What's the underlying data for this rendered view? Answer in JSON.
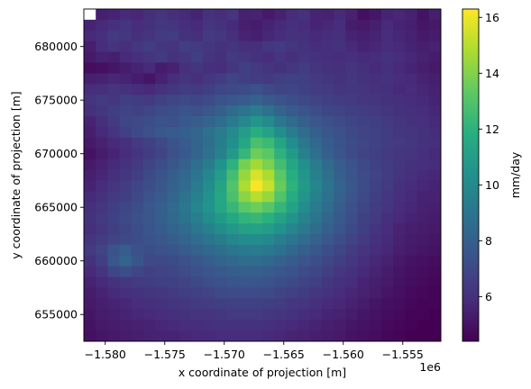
{
  "chart_data": {
    "type": "heatmap",
    "title": "",
    "xlabel": "x coordinate of projection [m]",
    "ylabel": "y coordinate of projection [m]",
    "x_offset_label": "1e6",
    "xlim": [
      -1.5818,
      -1.5518
    ],
    "ylim": [
      652500,
      683500
    ],
    "x_ticks": [
      -1.58,
      -1.575,
      -1.57,
      -1.565,
      -1.56,
      -1.555
    ],
    "x_tick_labels": [
      "−1.580",
      "−1.575",
      "−1.570",
      "−1.565",
      "−1.560",
      "−1.555"
    ],
    "y_ticks": [
      655000,
      660000,
      665000,
      670000,
      675000,
      680000
    ],
    "y_tick_labels": [
      "655000",
      "660000",
      "665000",
      "670000",
      "675000",
      "680000"
    ],
    "colormap": "viridis",
    "colorbar": {
      "label": "mm/day",
      "range": [
        4.4,
        16.3
      ],
      "ticks": [
        6,
        8,
        10,
        12,
        14,
        16
      ],
      "tick_labels": [
        "6",
        "8",
        "10",
        "12",
        "14",
        "16"
      ]
    },
    "grid": false,
    "grid_shape": [
      31,
      30
    ],
    "row_order": "top-to-bottom",
    "missing_value_cells": [
      [
        0,
        0
      ]
    ],
    "peak": {
      "value": 16.2,
      "x": -1.5673,
      "y": 667000
    },
    "values": [
      [
        null,
        5.4,
        5.6,
        5.8,
        5.7,
        6.0,
        6.2,
        6.0,
        5.8,
        5.6,
        6.1,
        5.9,
        6.2,
        5.5,
        5.6,
        5.2,
        5.5,
        5.9,
        6.1,
        5.6,
        5.5,
        5.8,
        5.5,
        4.9,
        5.1,
        5.6,
        5.7,
        5.5,
        5.0,
        5.4
      ],
      [
        5.6,
        5.8,
        6.0,
        6.2,
        5.9,
        6.1,
        6.3,
        6.2,
        6.0,
        5.8,
        6.2,
        6.1,
        5.8,
        5.4,
        5.3,
        5.6,
        5.8,
        6.0,
        5.9,
        5.6,
        5.7,
        5.9,
        5.3,
        5.2,
        5.4,
        5.8,
        5.6,
        5.4,
        5.1,
        5.2
      ],
      [
        5.8,
        6.0,
        6.4,
        6.3,
        6.0,
        6.2,
        6.4,
        6.5,
        6.1,
        6.0,
        6.4,
        6.3,
        6.0,
        5.6,
        5.4,
        5.7,
        5.9,
        6.1,
        6.0,
        5.8,
        5.9,
        6.0,
        5.6,
        5.4,
        5.6,
        5.9,
        5.7,
        5.5,
        5.2,
        5.3
      ],
      [
        5.4,
        5.9,
        6.2,
        6.0,
        6.3,
        6.5,
        6.3,
        6.2,
        6.6,
        6.4,
        6.3,
        6.1,
        6.2,
        6.0,
        6.0,
        6.3,
        6.4,
        6.2,
        6.1,
        5.9,
        6.0,
        6.1,
        5.8,
        5.6,
        5.7,
        5.9,
        5.8,
        5.6,
        5.4,
        5.5
      ],
      [
        5.2,
        5.5,
        5.4,
        5.8,
        6.0,
        6.2,
        6.4,
        6.1,
        6.3,
        6.6,
        6.2,
        6.0,
        6.4,
        6.3,
        6.1,
        5.9,
        6.2,
        6.0,
        6.2,
        6.1,
        6.0,
        5.9,
        6.0,
        5.8,
        5.9,
        6.1,
        5.9,
        5.7,
        5.5,
        5.3
      ],
      [
        4.8,
        4.9,
        5.1,
        5.3,
        5.6,
        5.8,
        5.3,
        5.5,
        6.0,
        6.2,
        6.0,
        5.9,
        6.3,
        6.6,
        6.4,
        6.2,
        6.1,
        6.3,
        6.5,
        6.2,
        6.1,
        6.0,
        6.2,
        6.0,
        5.8,
        6.0,
        5.8,
        5.6,
        5.4,
        5.2
      ],
      [
        5.4,
        5.5,
        5.7,
        5.6,
        5.3,
        5.1,
        5.5,
        5.9,
        6.2,
        6.0,
        6.3,
        6.5,
        6.8,
        6.6,
        6.5,
        6.4,
        6.6,
        6.7,
        6.6,
        6.4,
        6.2,
        6.1,
        6.3,
        6.1,
        6.0,
        6.1,
        5.9,
        5.8,
        5.6,
        5.4
      ],
      [
        5.9,
        6.0,
        6.2,
        6.1,
        5.9,
        5.8,
        6.1,
        6.3,
        6.5,
        6.4,
        6.6,
        6.9,
        7.0,
        7.1,
        7.3,
        7.0,
        6.8,
        6.9,
        6.7,
        6.5,
        6.4,
        6.2,
        6.3,
        6.2,
        6.1,
        6.0,
        5.8,
        5.9,
        5.7,
        5.5
      ],
      [
        6.2,
        6.4,
        6.3,
        6.6,
        6.5,
        6.4,
        6.7,
        6.9,
        7.0,
        6.9,
        7.1,
        7.4,
        7.6,
        7.8,
        8.1,
        7.7,
        7.4,
        7.2,
        7.0,
        6.8,
        6.6,
        6.5,
        6.4,
        6.3,
        6.2,
        6.1,
        6.0,
        5.9,
        5.8,
        5.6
      ],
      [
        6.0,
        6.3,
        6.6,
        6.8,
        6.7,
        6.9,
        7.1,
        7.2,
        7.4,
        7.3,
        7.6,
        8.0,
        8.5,
        8.9,
        9.3,
        8.8,
        8.2,
        7.8,
        7.5,
        7.2,
        6.9,
        6.8,
        6.6,
        6.5,
        6.4,
        6.2,
        6.1,
        6.0,
        5.9,
        5.7
      ],
      [
        5.6,
        6.0,
        6.4,
        6.9,
        7.0,
        7.2,
        7.4,
        7.3,
        7.7,
        7.9,
        8.2,
        8.6,
        9.2,
        9.9,
        10.6,
        10.0,
        9.1,
        8.5,
        8.0,
        7.6,
        7.3,
        7.1,
        6.9,
        6.7,
        6.6,
        6.4,
        6.2,
        6.1,
        6.0,
        5.8
      ],
      [
        5.4,
        5.8,
        6.2,
        6.7,
        7.0,
        7.3,
        7.6,
        7.8,
        8.0,
        8.3,
        8.8,
        9.3,
        10.0,
        10.9,
        11.8,
        11.2,
        10.2,
        9.3,
        8.6,
        8.0,
        7.6,
        7.3,
        7.0,
        6.8,
        6.7,
        6.5,
        6.3,
        6.2,
        6.1,
        5.9
      ],
      [
        5.2,
        5.5,
        5.8,
        6.0,
        6.4,
        6.7,
        7.0,
        7.4,
        7.8,
        8.2,
        8.7,
        9.4,
        10.3,
        11.5,
        12.8,
        12.4,
        11.3,
        10.1,
        9.1,
        8.4,
        7.8,
        7.4,
        7.1,
        6.9,
        6.7,
        6.5,
        6.4,
        6.3,
        6.1,
        6.0
      ],
      [
        5.0,
        5.3,
        5.6,
        5.9,
        6.2,
        6.5,
        6.8,
        7.3,
        7.7,
        8.2,
        8.8,
        9.6,
        10.8,
        12.2,
        13.6,
        13.2,
        12.0,
        10.8,
        9.6,
        8.7,
        8.0,
        7.5,
        7.1,
        6.8,
        6.6,
        6.4,
        6.3,
        6.2,
        6.0,
        5.8
      ],
      [
        5.2,
        5.5,
        5.8,
        6.1,
        6.4,
        6.8,
        7.2,
        7.6,
        8.1,
        8.7,
        9.4,
        10.4,
        12.0,
        13.8,
        14.6,
        13.9,
        12.6,
        11.4,
        10.3,
        9.3,
        8.5,
        7.9,
        7.4,
        7.0,
        6.7,
        6.5,
        6.3,
        6.1,
        6.0,
        5.9
      ],
      [
        5.4,
        5.7,
        6.0,
        6.3,
        6.6,
        7.0,
        7.4,
        7.9,
        8.4,
        9.0,
        9.8,
        10.9,
        12.6,
        14.4,
        15.6,
        14.8,
        13.2,
        11.8,
        10.6,
        9.6,
        8.7,
        8.0,
        7.5,
        7.1,
        6.8,
        6.5,
        6.2,
        6.0,
        5.8,
        5.7
      ],
      [
        5.6,
        5.9,
        6.2,
        6.5,
        6.9,
        7.2,
        7.6,
        8.1,
        8.6,
        9.3,
        10.1,
        11.3,
        13.0,
        14.8,
        16.2,
        15.3,
        13.5,
        12.0,
        10.8,
        9.8,
        8.9,
        8.2,
        7.6,
        7.1,
        6.7,
        6.4,
        6.1,
        5.9,
        5.7,
        5.6
      ],
      [
        5.8,
        6.1,
        6.4,
        6.6,
        7.0,
        7.4,
        7.8,
        8.3,
        8.9,
        9.6,
        10.4,
        11.5,
        12.8,
        14.2,
        15.0,
        14.4,
        13.0,
        11.7,
        10.6,
        9.6,
        8.8,
        8.1,
        7.5,
        7.0,
        6.6,
        6.3,
        6.0,
        5.8,
        5.6,
        5.5
      ],
      [
        6.0,
        6.3,
        6.6,
        6.9,
        7.2,
        7.6,
        8.0,
        8.5,
        9.1,
        9.8,
        10.5,
        11.4,
        12.3,
        13.2,
        13.6,
        13.1,
        12.2,
        11.2,
        10.2,
        9.3,
        8.6,
        7.9,
        7.3,
        6.9,
        6.5,
        6.2,
        5.9,
        5.7,
        5.5,
        5.4
      ],
      [
        6.1,
        6.4,
        6.7,
        7.0,
        7.3,
        7.6,
        8.0,
        8.4,
        8.9,
        9.5,
        10.1,
        10.8,
        11.5,
        12.1,
        12.3,
        11.9,
        11.2,
        10.5,
        9.7,
        9.0,
        8.3,
        7.7,
        7.2,
        6.7,
        6.4,
        6.0,
        5.8,
        5.6,
        5.4,
        5.3
      ],
      [
        6.0,
        6.3,
        6.6,
        6.9,
        7.2,
        7.5,
        7.8,
        8.2,
        8.6,
        9.1,
        9.6,
        10.2,
        10.7,
        11.1,
        11.2,
        10.9,
        10.4,
        9.8,
        9.2,
        8.6,
        8.0,
        7.5,
        7.0,
        6.6,
        6.2,
        5.9,
        5.6,
        5.4,
        5.3,
        5.2
      ],
      [
        6.2,
        6.5,
        6.8,
        7.0,
        7.2,
        7.4,
        7.6,
        7.9,
        8.2,
        8.6,
        9.0,
        9.4,
        9.8,
        10.1,
        10.2,
        9.9,
        9.5,
        9.0,
        8.6,
        8.1,
        7.6,
        7.2,
        6.8,
        6.4,
        6.1,
        5.8,
        5.5,
        5.3,
        5.2,
        5.1
      ],
      [
        6.4,
        6.8,
        7.4,
        7.9,
        7.3,
        7.2,
        7.3,
        7.5,
        7.8,
        8.1,
        8.4,
        8.7,
        9.0,
        9.2,
        9.3,
        9.1,
        8.8,
        8.4,
        8.0,
        7.6,
        7.2,
        6.9,
        6.5,
        6.2,
        5.9,
        5.7,
        5.4,
        5.2,
        5.1,
        5.0
      ],
      [
        6.1,
        6.6,
        7.6,
        8.2,
        7.5,
        7.0,
        7.0,
        7.1,
        7.3,
        7.6,
        7.9,
        8.2,
        8.4,
        8.6,
        8.6,
        8.4,
        8.1,
        7.8,
        7.5,
        7.2,
        6.9,
        6.6,
        6.3,
        6.0,
        5.7,
        5.5,
        5.2,
        5.0,
        4.9,
        4.8
      ],
      [
        5.8,
        6.2,
        6.9,
        7.2,
        6.9,
        6.7,
        6.8,
        6.9,
        7.1,
        7.3,
        7.5,
        7.7,
        7.9,
        8.0,
        8.0,
        7.8,
        7.6,
        7.4,
        7.1,
        6.9,
        6.6,
        6.3,
        6.1,
        5.8,
        5.6,
        5.3,
        5.1,
        4.9,
        4.8,
        4.7
      ],
      [
        5.5,
        5.8,
        6.1,
        6.3,
        6.4,
        6.5,
        6.6,
        6.7,
        6.8,
        7.0,
        7.2,
        7.3,
        7.5,
        7.5,
        7.5,
        7.4,
        7.2,
        7.0,
        6.8,
        6.6,
        6.3,
        6.1,
        5.9,
        5.6,
        5.4,
        5.2,
        5.0,
        4.8,
        4.7,
        4.6
      ],
      [
        5.3,
        5.6,
        5.8,
        6.0,
        6.1,
        6.2,
        6.3,
        6.4,
        6.6,
        6.7,
        6.8,
        7.0,
        7.1,
        7.1,
        7.1,
        7.0,
        6.8,
        6.7,
        6.5,
        6.3,
        6.1,
        5.9,
        5.7,
        5.5,
        5.3,
        5.1,
        4.9,
        4.7,
        4.6,
        4.5
      ],
      [
        5.2,
        5.4,
        5.6,
        5.7,
        5.9,
        6.0,
        6.1,
        6.2,
        6.3,
        6.4,
        6.5,
        6.6,
        6.7,
        6.7,
        6.7,
        6.6,
        6.5,
        6.3,
        6.2,
        6.0,
        5.8,
        5.7,
        5.5,
        5.3,
        5.1,
        4.9,
        4.8,
        4.6,
        4.5,
        4.5
      ],
      [
        5.1,
        5.3,
        5.4,
        5.6,
        5.7,
        5.8,
        5.9,
        6.0,
        6.1,
        6.2,
        6.2,
        6.3,
        6.4,
        6.4,
        6.4,
        6.3,
        6.2,
        6.1,
        5.9,
        5.8,
        5.6,
        5.5,
        5.3,
        5.1,
        5.0,
        4.8,
        4.7,
        4.5,
        4.5,
        4.4
      ],
      [
        5.0,
        5.2,
        5.3,
        5.4,
        5.5,
        5.6,
        5.7,
        5.8,
        5.9,
        5.9,
        6.0,
        6.1,
        6.1,
        6.1,
        6.1,
        6.0,
        5.9,
        5.8,
        5.7,
        5.6,
        5.4,
        5.3,
        5.1,
        5.0,
        4.9,
        4.7,
        4.6,
        4.5,
        4.4,
        4.4
      ],
      [
        4.9,
        5.1,
        5.2,
        5.3,
        5.4,
        5.5,
        5.6,
        5.6,
        5.7,
        5.8,
        5.8,
        5.9,
        5.9,
        5.9,
        5.9,
        5.8,
        5.7,
        5.6,
        5.5,
        5.4,
        5.3,
        5.2,
        5.0,
        4.9,
        4.8,
        4.6,
        4.5,
        4.4,
        4.4,
        4.4
      ]
    ]
  }
}
